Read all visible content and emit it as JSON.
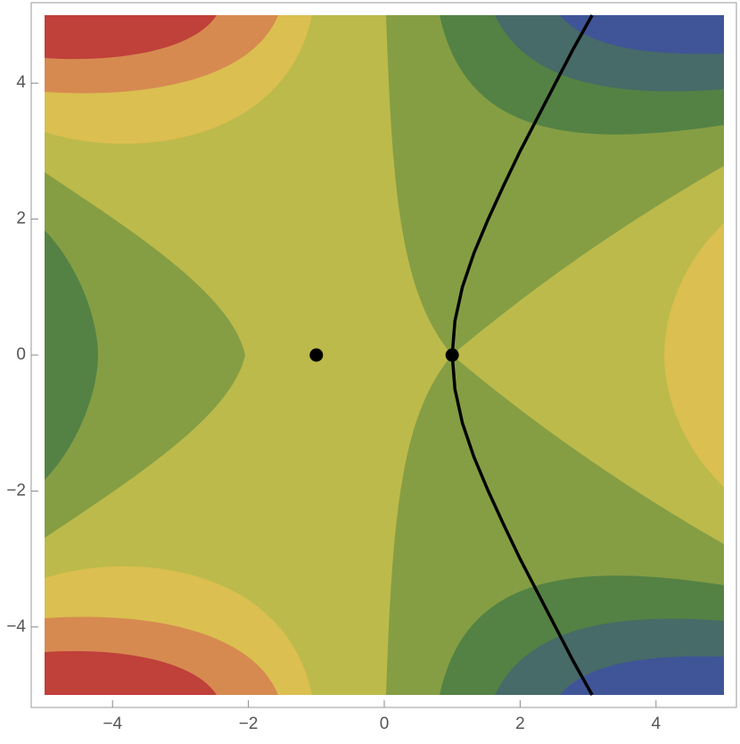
{
  "chart_data": {
    "type": "contour",
    "xlim": [
      -5,
      5
    ],
    "ylim": [
      -5,
      5
    ],
    "xticks": [
      {
        "value": -4,
        "label": "−4"
      },
      {
        "value": -2,
        "label": "−2"
      },
      0,
      2,
      4
    ],
    "yticks": [
      {
        "value": -4,
        "label": "−4"
      },
      {
        "value": -2,
        "label": "−2"
      },
      0,
      2,
      4
    ],
    "curve": {
      "color": "#000000",
      "x": [
        3.06,
        2.78,
        2.52,
        2.26,
        2.0,
        1.76,
        1.53,
        1.32,
        1.15,
        1.04,
        1.0,
        1.04,
        1.15,
        1.32,
        1.53,
        1.76,
        2.0,
        2.26,
        2.52,
        2.78,
        3.06
      ],
      "y": [
        -5,
        -4.5,
        -4,
        -3.5,
        -3,
        -2.5,
        -2,
        -1.5,
        -1,
        -0.5,
        0,
        0.5,
        1,
        1.5,
        2,
        2.5,
        3,
        3.5,
        4,
        4.5,
        5
      ]
    },
    "points": {
      "color": "#000000",
      "x": [
        -1,
        1
      ],
      "y": [
        0,
        0
      ]
    }
  }
}
